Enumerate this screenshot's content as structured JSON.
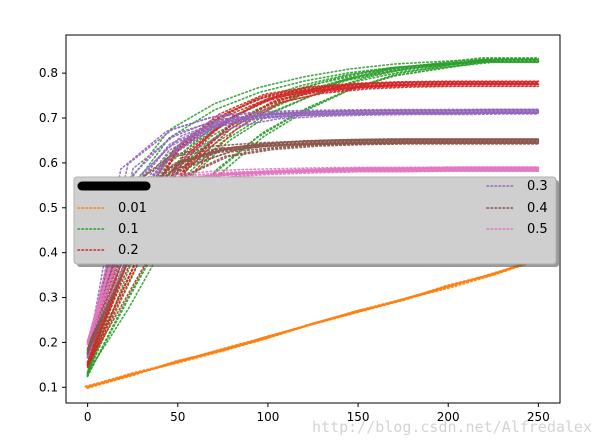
{
  "watermark": "http://blog.csdn.net/Alfredalex",
  "chart_data": {
    "type": "line",
    "title": "",
    "xlabel": "",
    "ylabel": "",
    "xlim": [
      -12,
      262
    ],
    "ylim": [
      0.065,
      0.885
    ],
    "xticks": [
      0,
      50,
      100,
      150,
      200,
      250
    ],
    "yticks": [
      0.1,
      0.2,
      0.3,
      0.4,
      0.5,
      0.6,
      0.7,
      0.8
    ],
    "xtick_labels": [
      "0",
      "50",
      "100",
      "150",
      "200",
      "250"
    ],
    "ytick_labels": [
      "0.1",
      "0.2",
      "0.3",
      "0.4",
      "0.5",
      "0.6",
      "0.7",
      "0.8"
    ],
    "grid": false,
    "line_style": "dotted",
    "legend": {
      "placement": "center-left",
      "shadow": true,
      "column_left": [
        "0.01",
        "0.1",
        "0.2"
      ],
      "column_right": [
        "0.3",
        "0.4",
        "0.5"
      ]
    },
    "series": [
      {
        "name": "",
        "color": "#000000",
        "x": [
          0,
          5,
          10,
          15,
          20,
          25,
          30,
          35
        ],
        "y": [
          0.545,
          0.545,
          0.545,
          0.545,
          0.545,
          0.545,
          0.545,
          0.545
        ],
        "runs": 1
      },
      {
        "name": "0.01",
        "color": "#ff7f0e",
        "x": [
          0,
          25,
          50,
          75,
          100,
          125,
          150,
          175,
          200,
          225,
          250
        ],
        "y": [
          0.1,
          0.128,
          0.156,
          0.184,
          0.212,
          0.24,
          0.268,
          0.296,
          0.324,
          0.352,
          0.385
        ],
        "runs": 8
      },
      {
        "name": "0.1",
        "color": "#2ca02c",
        "x": [
          0,
          25,
          50,
          75,
          100,
          125,
          150,
          175,
          200,
          225,
          250
        ],
        "y": [
          0.13,
          0.4,
          0.57,
          0.66,
          0.72,
          0.76,
          0.79,
          0.81,
          0.82,
          0.83,
          0.83
        ],
        "runs": 14
      },
      {
        "name": "0.2",
        "color": "#d62728",
        "x": [
          0,
          25,
          50,
          75,
          100,
          125,
          150,
          175,
          200,
          225,
          250
        ],
        "y": [
          0.15,
          0.48,
          0.64,
          0.71,
          0.75,
          0.765,
          0.772,
          0.775,
          0.776,
          0.776,
          0.776
        ],
        "runs": 14
      },
      {
        "name": "0.3",
        "color": "#9467bd",
        "x": [
          0,
          25,
          50,
          75,
          100,
          125,
          150,
          175,
          200,
          225,
          250
        ],
        "y": [
          0.17,
          0.52,
          0.64,
          0.69,
          0.705,
          0.71,
          0.712,
          0.713,
          0.713,
          0.714,
          0.714
        ],
        "runs": 14
      },
      {
        "name": "0.4",
        "color": "#8c564b",
        "x": [
          0,
          25,
          50,
          75,
          100,
          125,
          150,
          175,
          200,
          225,
          250
        ],
        "y": [
          0.18,
          0.5,
          0.6,
          0.63,
          0.64,
          0.645,
          0.647,
          0.648,
          0.648,
          0.648,
          0.648
        ],
        "runs": 14
      },
      {
        "name": "0.5",
        "color": "#e377c2",
        "x": [
          0,
          25,
          50,
          75,
          100,
          125,
          150,
          175,
          200,
          225,
          250
        ],
        "y": [
          0.2,
          0.5,
          0.56,
          0.575,
          0.58,
          0.583,
          0.585,
          0.585,
          0.586,
          0.586,
          0.586
        ],
        "runs": 14
      }
    ]
  }
}
